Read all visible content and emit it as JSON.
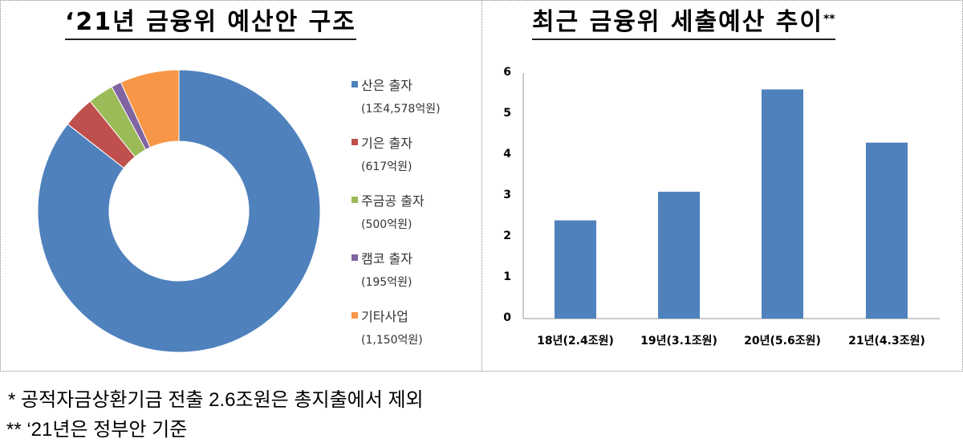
{
  "left_panel": {
    "title": "‘21년 금융위 예산안 구조"
  },
  "right_panel": {
    "title": "최근 금융위 세출예산 추이",
    "title_superscript": "**"
  },
  "legend": [
    {
      "label": "산은 출자",
      "sub": "(1조4,578억원)",
      "color": "#4F81BD"
    },
    {
      "label": "기은 출자",
      "sub": "(617억원)",
      "color": "#C0504D"
    },
    {
      "label": "주금공 출자",
      "sub": "(500억원)",
      "color": "#9BBB59"
    },
    {
      "label": "캠코 출자",
      "sub": "(195억원)",
      "color": "#8064A2"
    },
    {
      "label": "기타사업",
      "sub": "(1,150억원)",
      "color": "#F79646"
    }
  ],
  "y_ticks": [
    "0",
    "1",
    "2",
    "3",
    "4",
    "5",
    "6"
  ],
  "x_ticks": [
    "18년(2.4조원)",
    "19년(3.1조원)",
    "20년(5.6조원)",
    "21년(4.3조원)"
  ],
  "footnotes": {
    "note1": "* 공적자금상환기금 전출 2.6조원은 총지출에서 제외",
    "note2": "** ‘21년은 정부안 기준"
  },
  "chart_data": [
    {
      "type": "pie",
      "subtype": "donut",
      "title": "‘21년 금융위 예산안 구조",
      "categories": [
        "산은 출자",
        "기은 출자",
        "주금공 출자",
        "캠코 출자",
        "기타사업"
      ],
      "values": [
        14578,
        617,
        500,
        195,
        1150
      ],
      "unit": "억원",
      "colors": [
        "#4F81BD",
        "#C0504D",
        "#9BBB59",
        "#8064A2",
        "#F79646"
      ],
      "legend_position": "right"
    },
    {
      "type": "bar",
      "title": "최근 금융위 세출예산 추이**",
      "categories": [
        "18년(2.4조원)",
        "19년(3.1조원)",
        "20년(5.6조원)",
        "21년(4.3조원)"
      ],
      "values": [
        2.4,
        3.1,
        5.6,
        4.3
      ],
      "unit": "조원",
      "xlabel": "",
      "ylabel": "",
      "ylim": [
        0,
        6
      ],
      "yticks": [
        0,
        1,
        2,
        3,
        4,
        5,
        6
      ],
      "grid": false,
      "color": "#4F81BD"
    }
  ]
}
